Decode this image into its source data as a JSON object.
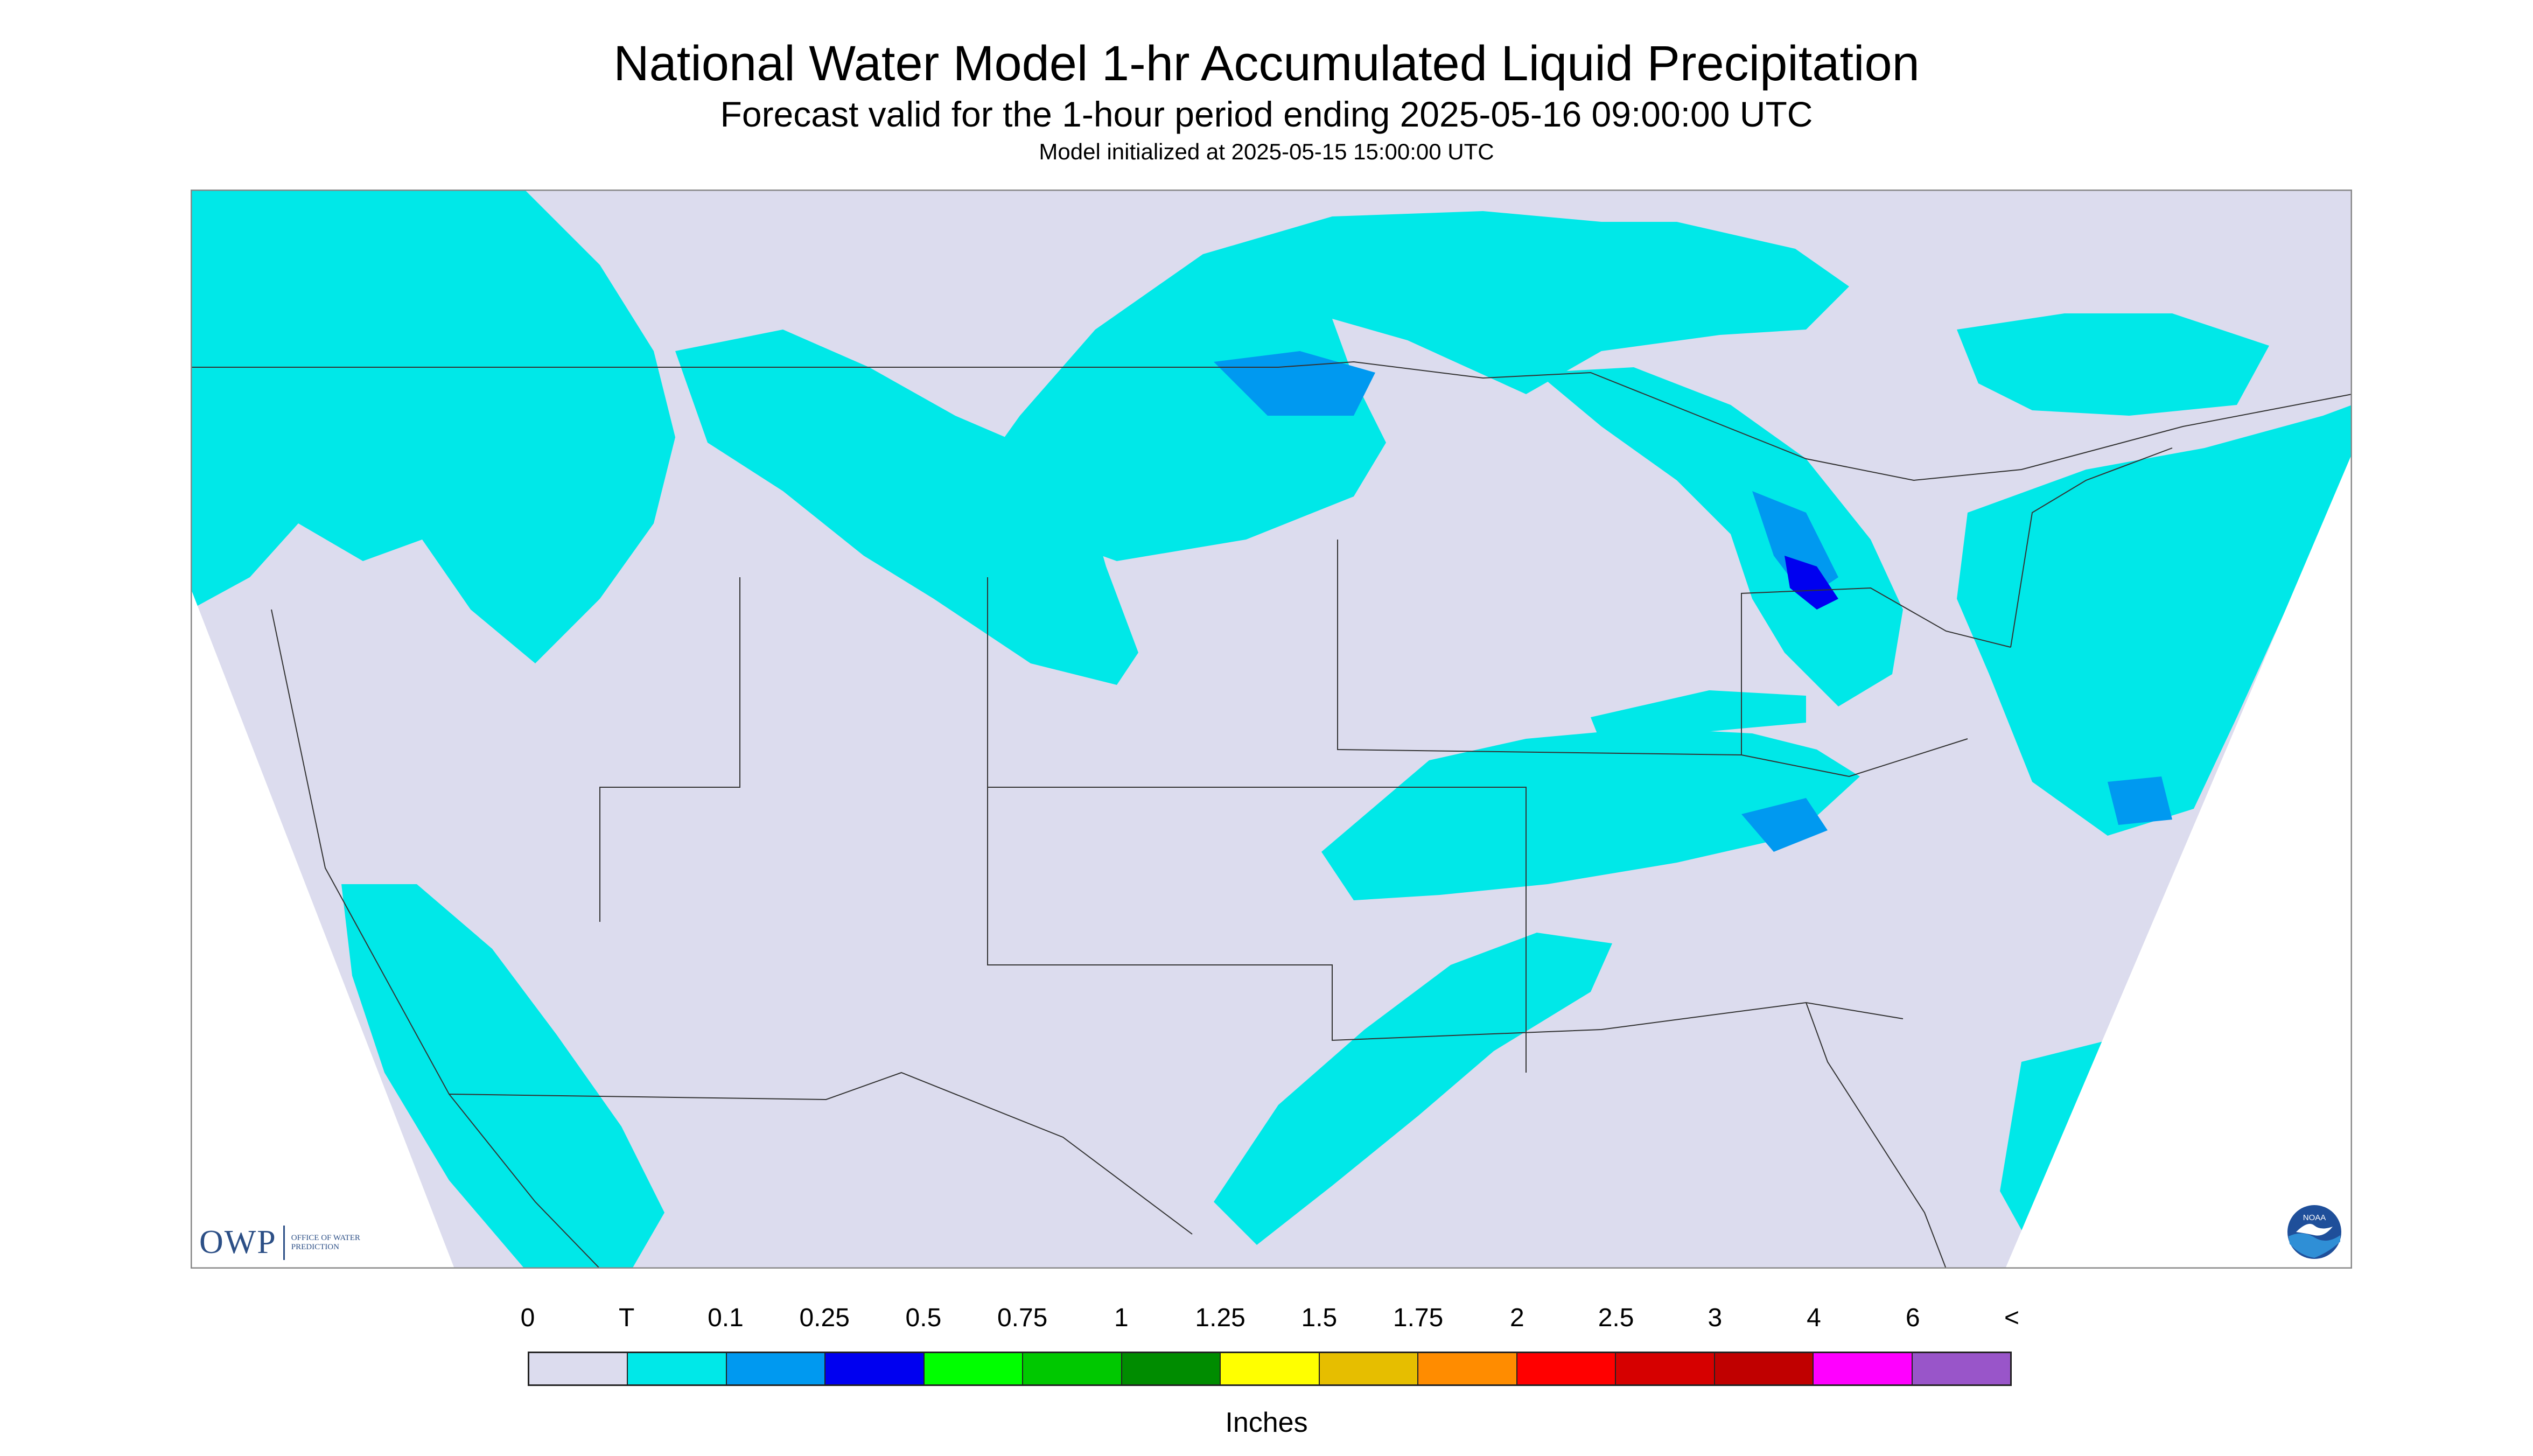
{
  "header": {
    "title": "National Water Model 1-hr Accumulated Liquid Precipitation",
    "subtitle": "Forecast valid for the 1-hour period ending 2025-05-16 09:00:00 UTC",
    "init_note": "Model initialized at 2025-05-15 15:00:00 UTC"
  },
  "logos": {
    "owp_text": "OWP",
    "owp_subtext": "OFFICE OF WATER PREDICTION",
    "noaa_text": "NOAA",
    "icons": [
      "owp-logo-icon",
      "noaa-logo-icon"
    ]
  },
  "map": {
    "background_color": "#dcdcee",
    "outside_domain_color": "#ffffff",
    "boundary_color": "#333333",
    "precip_light_color": "#00e8e8",
    "precip_medium_color": "#0099f0",
    "precip_heavy_color": "#0000f0"
  },
  "legend": {
    "labels": [
      "0",
      "T",
      "0.1",
      "0.25",
      "0.5",
      "0.75",
      "1",
      "1.25",
      "1.5",
      "1.75",
      "2",
      "2.5",
      "3",
      "4",
      "6",
      "<"
    ],
    "colors": [
      "#dcdcee",
      "#00e8e8",
      "#0099f0",
      "#0000f0",
      "#00ff00",
      "#00c800",
      "#008c00",
      "#ffff00",
      "#e6be00",
      "#ff8c00",
      "#ff0000",
      "#d60000",
      "#c00000",
      "#ff00ff",
      "#9955c9"
    ],
    "units": "Inches"
  }
}
